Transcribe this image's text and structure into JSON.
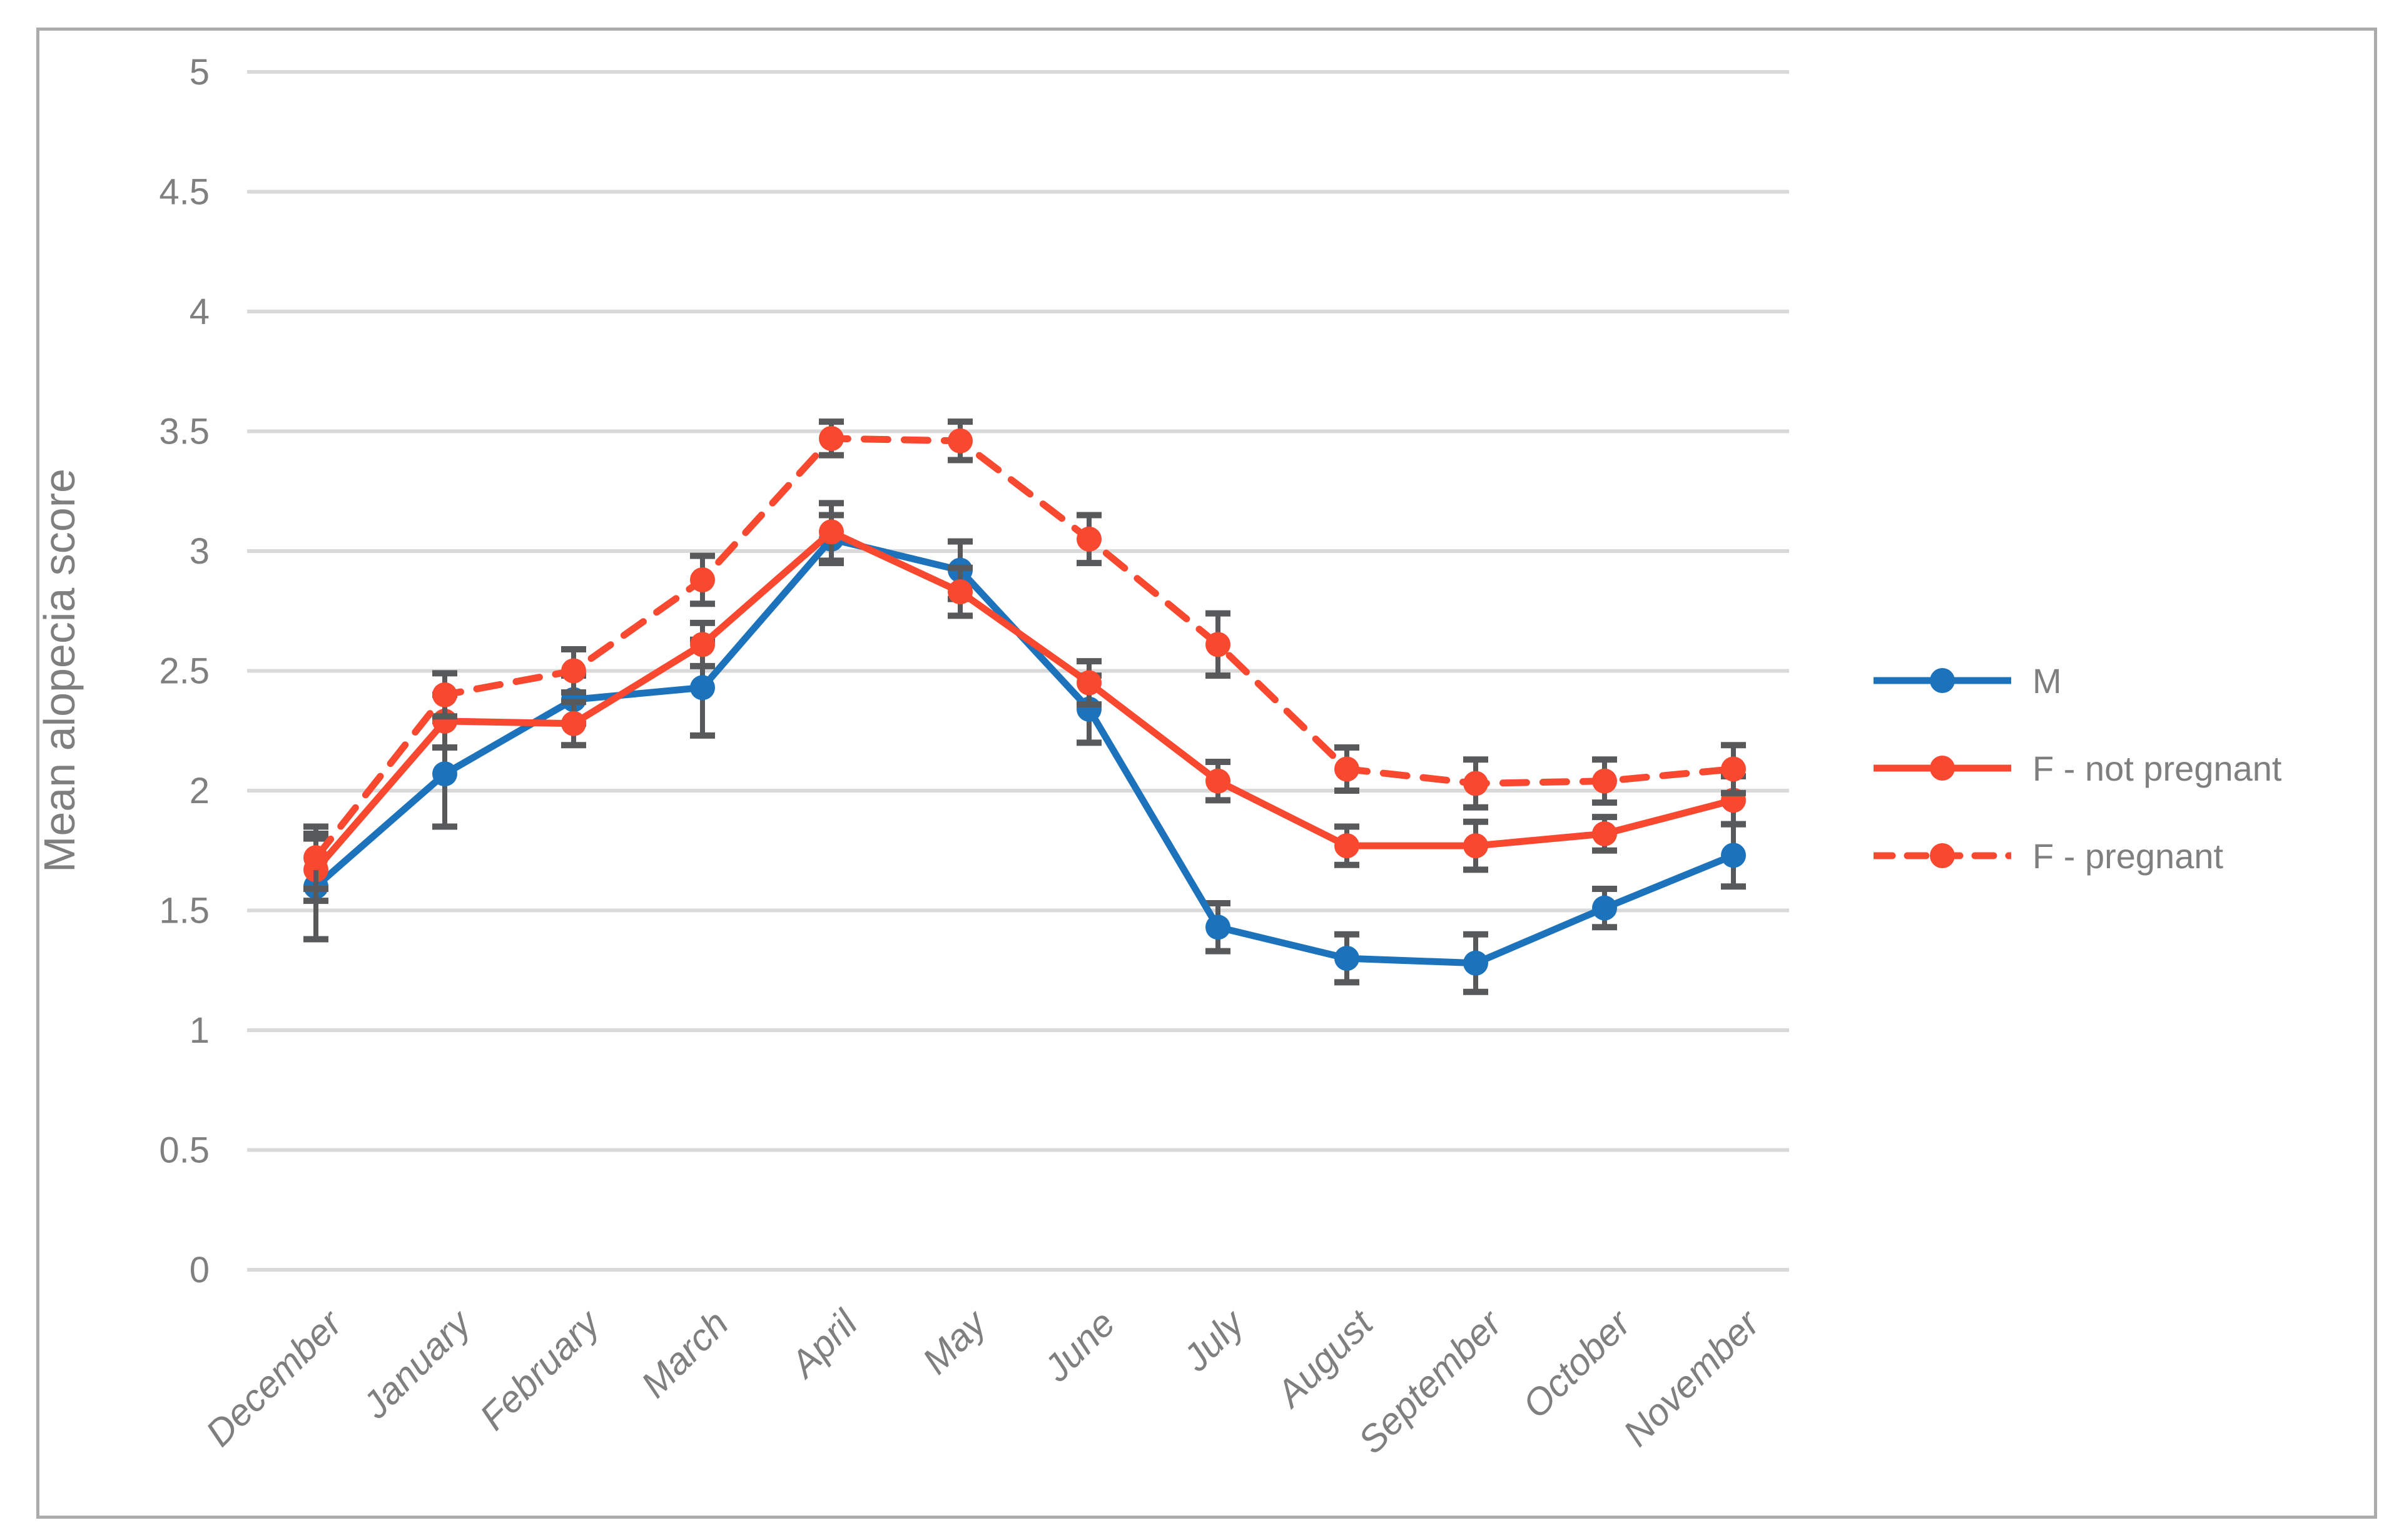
{
  "figure": {
    "background": "#ffffff",
    "border_color": "#ababab"
  },
  "chart_data": {
    "type": "line",
    "title": "",
    "xlabel": "",
    "ylabel": "Mean alopecia score",
    "ylim": [
      0,
      5
    ],
    "ytick_step": 0.5,
    "yticks": [
      "0",
      "0.5",
      "1",
      "1.5",
      "2",
      "2.5",
      "3",
      "3.5",
      "4",
      "4.5",
      "5"
    ],
    "grid": "horizontal",
    "gridline_color": "#d9d9d9",
    "axis_text_color": "#7f7f7f",
    "error_bar_color": "#58595a",
    "legend_position": "right",
    "categories": [
      "December",
      "January",
      "February",
      "March",
      "April",
      "May",
      "June",
      "July",
      "August",
      "September",
      "October",
      "November"
    ],
    "series": [
      {
        "name": "M",
        "color": "#1c73bb",
        "style": "solid",
        "marker": "circle",
        "values": [
          1.6,
          2.07,
          2.38,
          2.43,
          3.05,
          2.92,
          2.34,
          1.43,
          1.3,
          1.28,
          1.51,
          1.73
        ],
        "errors": [
          0.22,
          0.22,
          0.1,
          0.2,
          0.1,
          0.12,
          0.14,
          0.1,
          0.1,
          0.12,
          0.08,
          0.13
        ]
      },
      {
        "name": "F - not pregnant",
        "color": "#f8482f",
        "style": "solid",
        "marker": "circle",
        "values": [
          1.67,
          2.29,
          2.28,
          2.61,
          3.08,
          2.83,
          2.45,
          2.04,
          1.77,
          1.77,
          1.82,
          1.96
        ],
        "errors": [
          0.13,
          0.11,
          0.09,
          0.09,
          0.12,
          0.1,
          0.09,
          0.08,
          0.08,
          0.1,
          0.07,
          0.1
        ]
      },
      {
        "name": "F - pregnant",
        "color": "#f8482f",
        "style": "dashed",
        "marker": "circle",
        "values": [
          1.72,
          2.4,
          2.5,
          2.88,
          3.47,
          3.46,
          3.05,
          2.61,
          2.09,
          2.03,
          2.04,
          2.09
        ],
        "errors": [
          0.13,
          0.09,
          0.09,
          0.1,
          0.07,
          0.08,
          0.1,
          0.13,
          0.09,
          0.1,
          0.09,
          0.1
        ]
      }
    ]
  }
}
